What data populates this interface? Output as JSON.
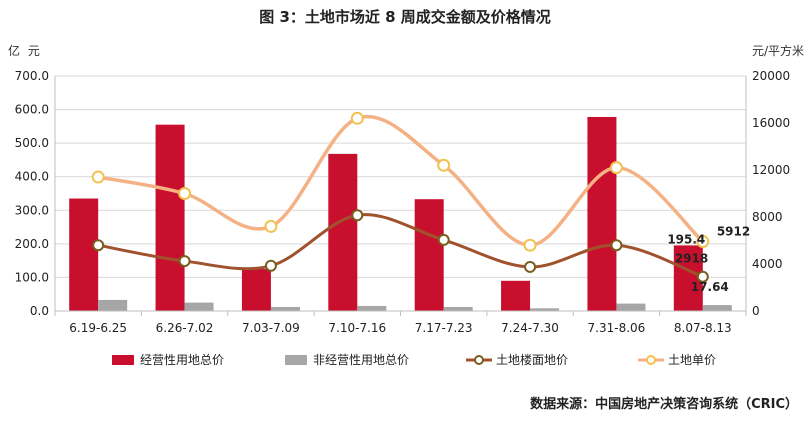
{
  "title": "图 3：土地市场近 8 周成交金额及价格情况",
  "units": {
    "left": "亿 元",
    "right": "元/平方米"
  },
  "source": "数据来源：中国房地产决策咨询系统（CRIC）",
  "colors": {
    "operating": "#C8102E",
    "non_operating": "#A6A6A6",
    "floor_price": "#A0522D",
    "unit_price": "#F4B183",
    "marker_fill": "#FFFFFF"
  },
  "chart_data": {
    "type": "bar",
    "categories": [
      "6.19-6.25",
      "6.26-7.02",
      "7.03-7.09",
      "7.10-7.16",
      "7.17-7.23",
      "7.24-7.30",
      "7.31-8.06",
      "8.07-8.13"
    ],
    "y_left": {
      "ylim": [
        0,
        700
      ],
      "ticks": [
        "0.0",
        "100.0",
        "200.0",
        "300.0",
        "400.0",
        "500.0",
        "600.0",
        "700.0"
      ]
    },
    "y_right": {
      "ylim": [
        0,
        20000
      ],
      "ticks": [
        "0",
        "4000",
        "8000",
        "12000",
        "16000",
        "20000"
      ]
    },
    "series": [
      {
        "name": "经营性用地总价",
        "type": "bar",
        "axis": "left",
        "values": [
          335,
          555,
          125,
          468,
          333,
          90,
          578,
          195.4
        ]
      },
      {
        "name": "非经营性用地总价",
        "type": "bar",
        "axis": "left",
        "values": [
          33,
          25,
          12,
          15,
          12,
          8,
          22,
          17.64
        ]
      },
      {
        "name": "土地楼面地价",
        "type": "line",
        "axis": "right",
        "values": [
          5600,
          4250,
          3850,
          8150,
          6050,
          3750,
          5600,
          2918
        ]
      },
      {
        "name": "土地单价",
        "type": "line",
        "axis": "right",
        "values": [
          11400,
          10000,
          7200,
          16400,
          12400,
          5600,
          12200,
          5912
        ]
      }
    ],
    "data_labels": {
      "operating_last": "195.4",
      "non_operating_last": "17.64",
      "floor_last": "2918",
      "unit_last": "5912"
    },
    "grid": true,
    "legend_position": "bottom"
  }
}
